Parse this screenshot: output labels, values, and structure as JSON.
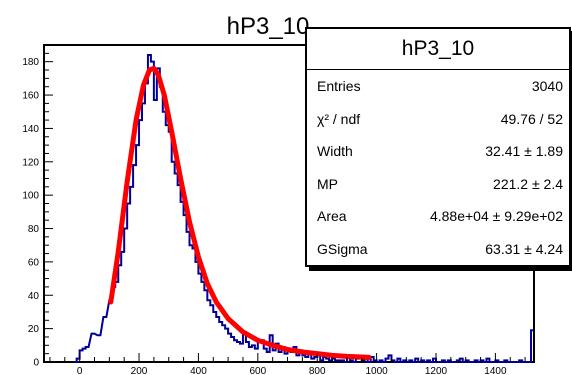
{
  "chart_data": {
    "type": "histogram",
    "title": "hP3_10",
    "xlim": [
      -120,
      1530
    ],
    "ylim": [
      0,
      190
    ],
    "x_ticks": [
      0,
      200,
      400,
      600,
      800,
      1000,
      1200,
      1400
    ],
    "y_ticks": [
      0,
      20,
      40,
      60,
      80,
      100,
      120,
      140,
      160,
      180
    ],
    "hist_line_color": "#000099",
    "fit_color": "#ff0000",
    "bins": [
      [
        -20,
        0
      ],
      [
        -10,
        2
      ],
      [
        0,
        7
      ],
      [
        10,
        8
      ],
      [
        20,
        9
      ],
      [
        40,
        17
      ],
      [
        60,
        16
      ],
      [
        80,
        27
      ],
      [
        100,
        37
      ],
      [
        110,
        45
      ],
      [
        120,
        48
      ],
      [
        130,
        58
      ],
      [
        140,
        66
      ],
      [
        150,
        80
      ],
      [
        160,
        95
      ],
      [
        170,
        105
      ],
      [
        180,
        118
      ],
      [
        190,
        130
      ],
      [
        200,
        145
      ],
      [
        210,
        155
      ],
      [
        220,
        167
      ],
      [
        230,
        184
      ],
      [
        240,
        180
      ],
      [
        250,
        157
      ],
      [
        260,
        176
      ],
      [
        270,
        165
      ],
      [
        280,
        150
      ],
      [
        290,
        142
      ],
      [
        300,
        138
      ],
      [
        310,
        120
      ],
      [
        320,
        113
      ],
      [
        330,
        106
      ],
      [
        340,
        96
      ],
      [
        350,
        88
      ],
      [
        360,
        78
      ],
      [
        370,
        70
      ],
      [
        380,
        68
      ],
      [
        390,
        60
      ],
      [
        400,
        53
      ],
      [
        410,
        48
      ],
      [
        420,
        43
      ],
      [
        430,
        37
      ],
      [
        440,
        34
      ],
      [
        450,
        30
      ],
      [
        460,
        27
      ],
      [
        470,
        24
      ],
      [
        480,
        22
      ],
      [
        490,
        20
      ],
      [
        500,
        17
      ],
      [
        510,
        15
      ],
      [
        520,
        13
      ],
      [
        530,
        12
      ],
      [
        540,
        11
      ],
      [
        550,
        18
      ],
      [
        560,
        12
      ],
      [
        570,
        9
      ],
      [
        580,
        10
      ],
      [
        590,
        8
      ],
      [
        600,
        12
      ],
      [
        610,
        13
      ],
      [
        620,
        8
      ],
      [
        630,
        6
      ],
      [
        640,
        16
      ],
      [
        650,
        7
      ],
      [
        660,
        11
      ],
      [
        670,
        6
      ],
      [
        680,
        9
      ],
      [
        690,
        5
      ],
      [
        700,
        8
      ],
      [
        710,
        6
      ],
      [
        720,
        9
      ],
      [
        730,
        4
      ],
      [
        740,
        7
      ],
      [
        750,
        4
      ],
      [
        760,
        3
      ],
      [
        770,
        5
      ],
      [
        780,
        2
      ],
      [
        790,
        3
      ],
      [
        800,
        4
      ],
      [
        810,
        1
      ],
      [
        820,
        3
      ],
      [
        830,
        2
      ],
      [
        840,
        1
      ],
      [
        850,
        2
      ],
      [
        860,
        1
      ],
      [
        870,
        1
      ],
      [
        880,
        1
      ],
      [
        890,
        0
      ],
      [
        900,
        3
      ],
      [
        910,
        1
      ],
      [
        920,
        0
      ],
      [
        930,
        2
      ],
      [
        940,
        3
      ],
      [
        950,
        1
      ],
      [
        960,
        2
      ],
      [
        970,
        0
      ],
      [
        980,
        3
      ],
      [
        990,
        1
      ],
      [
        1000,
        0
      ],
      [
        1010,
        1
      ],
      [
        1020,
        0
      ],
      [
        1030,
        2
      ],
      [
        1040,
        4
      ],
      [
        1050,
        1
      ],
      [
        1060,
        0
      ],
      [
        1070,
        2
      ],
      [
        1080,
        0
      ],
      [
        1090,
        1
      ],
      [
        1100,
        0
      ],
      [
        1110,
        1
      ],
      [
        1120,
        0
      ],
      [
        1130,
        2
      ],
      [
        1140,
        0
      ],
      [
        1150,
        1
      ],
      [
        1160,
        0
      ],
      [
        1170,
        1
      ],
      [
        1180,
        0
      ],
      [
        1190,
        2
      ],
      [
        1200,
        0
      ],
      [
        1210,
        0
      ],
      [
        1220,
        1
      ],
      [
        1230,
        0
      ],
      [
        1240,
        1
      ],
      [
        1250,
        0
      ],
      [
        1260,
        0
      ],
      [
        1270,
        1
      ],
      [
        1280,
        2
      ],
      [
        1290,
        0
      ],
      [
        1300,
        1
      ],
      [
        1310,
        0
      ],
      [
        1320,
        0
      ],
      [
        1330,
        1
      ],
      [
        1340,
        0
      ],
      [
        1350,
        1
      ],
      [
        1360,
        0
      ],
      [
        1370,
        2
      ],
      [
        1380,
        0
      ],
      [
        1390,
        0
      ],
      [
        1400,
        1
      ],
      [
        1410,
        0
      ],
      [
        1420,
        0
      ],
      [
        1430,
        1
      ],
      [
        1440,
        0
      ],
      [
        1450,
        0
      ],
      [
        1460,
        0
      ],
      [
        1470,
        0
      ],
      [
        1480,
        1
      ],
      [
        1490,
        0
      ],
      [
        1500,
        0
      ],
      [
        1510,
        0
      ],
      [
        1520,
        19
      ]
    ],
    "fit": {
      "x_range": [
        105,
        975
      ],
      "points": [
        [
          105,
          36
        ],
        [
          130,
          66
        ],
        [
          160,
          108
        ],
        [
          190,
          145
        ],
        [
          215,
          166
        ],
        [
          235,
          175
        ],
        [
          250,
          176
        ],
        [
          265,
          172
        ],
        [
          285,
          160
        ],
        [
          310,
          138
        ],
        [
          340,
          110
        ],
        [
          370,
          84
        ],
        [
          400,
          63
        ],
        [
          430,
          47
        ],
        [
          460,
          36
        ],
        [
          500,
          26
        ],
        [
          550,
          18
        ],
        [
          600,
          13
        ],
        [
          650,
          10
        ],
        [
          700,
          7.5
        ],
        [
          750,
          6
        ],
        [
          800,
          5
        ],
        [
          850,
          4
        ],
        [
          900,
          3.4
        ],
        [
          950,
          3
        ],
        [
          975,
          2.8
        ]
      ]
    },
    "stats": {
      "title": "hP3_10",
      "rows": [
        {
          "key": "Entries",
          "value": "3040"
        },
        {
          "key": "χ² / ndf",
          "value": "49.76 / 52"
        },
        {
          "key": "Width",
          "value": "32.41 ± 1.89"
        },
        {
          "key": "MP",
          "value": "221.2 ± 2.4"
        },
        {
          "key": "Area",
          "value": "4.88e+04 ± 9.29e+02"
        },
        {
          "key": "GSigma",
          "value": "63.31 ± 4.24"
        }
      ]
    }
  }
}
